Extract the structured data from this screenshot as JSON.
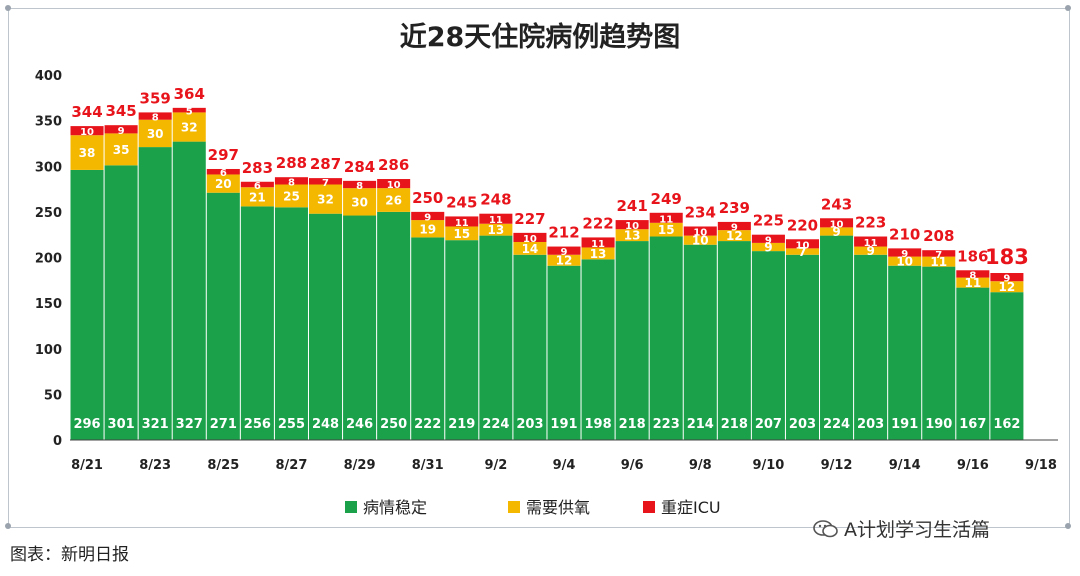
{
  "footer": "图表：新明日报",
  "watermark": "A计划学习生活篇",
  "chart_data": {
    "type": "bar",
    "stacked": true,
    "title": "近28天住院病例趋势图",
    "ylim": [
      0,
      400
    ],
    "y_ticks": [
      0,
      50,
      100,
      150,
      200,
      250,
      300,
      350,
      400
    ],
    "categories": [
      "8/21",
      "8/22",
      "8/23",
      "8/24",
      "8/25",
      "8/26",
      "8/27",
      "8/28",
      "8/29",
      "8/30",
      "8/31",
      "9/1",
      "9/2",
      "9/3",
      "9/4",
      "9/5",
      "9/6",
      "9/7",
      "9/8",
      "9/9",
      "9/10",
      "9/11",
      "9/12",
      "9/13",
      "9/14",
      "9/15",
      "9/16",
      "9/17",
      "9/18"
    ],
    "x_tick_labels": [
      "8/21",
      "8/23",
      "8/25",
      "8/27",
      "8/29",
      "8/31",
      "9/2",
      "9/4",
      "9/6",
      "9/8",
      "9/10",
      "9/12",
      "9/14",
      "9/16",
      "9/18"
    ],
    "series": [
      {
        "name": "病情稳定",
        "color": "#1aa14a",
        "values": [
          296,
          301,
          321,
          327,
          271,
          256,
          255,
          248,
          246,
          250,
          222,
          219,
          224,
          203,
          191,
          198,
          218,
          223,
          214,
          218,
          207,
          203,
          224,
          203,
          191,
          190,
          167,
          162,
          null
        ]
      },
      {
        "name": "需要供氧",
        "color": "#f5b800",
        "values": [
          38,
          35,
          30,
          32,
          20,
          21,
          25,
          32,
          30,
          26,
          19,
          15,
          13,
          14,
          12,
          13,
          13,
          15,
          10,
          12,
          9,
          7,
          9,
          9,
          10,
          11,
          11,
          12,
          null
        ]
      },
      {
        "name": "重症ICU",
        "color": "#e8141b",
        "values": [
          10,
          9,
          8,
          5,
          6,
          6,
          8,
          7,
          8,
          10,
          9,
          11,
          11,
          10,
          9,
          11,
          10,
          11,
          10,
          9,
          9,
          10,
          10,
          11,
          9,
          7,
          8,
          9,
          null
        ]
      }
    ],
    "totals": [
      344,
      345,
      359,
      364,
      297,
      283,
      288,
      287,
      284,
      286,
      250,
      245,
      248,
      227,
      212,
      222,
      241,
      249,
      234,
      239,
      225,
      220,
      243,
      223,
      210,
      208,
      186,
      183,
      null
    ],
    "stable_label_color": "#ffffff",
    "total_label_color": "#e8141b"
  }
}
